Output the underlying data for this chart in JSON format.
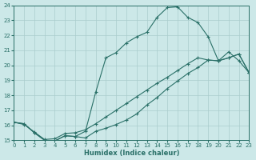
{
  "xlabel": "Humidex (Indice chaleur)",
  "background_color": "#cce8e8",
  "grid_color": "#aacccc",
  "line_color": "#2a7068",
  "xlim": [
    0,
    23
  ],
  "ylim": [
    15,
    24
  ],
  "xtick_labels": [
    "0",
    "1",
    "2",
    "3",
    "4",
    "5",
    "6",
    "7",
    "8",
    "9",
    "10",
    "11",
    "12",
    "13",
    "14",
    "15",
    "16",
    "17",
    "18",
    "19",
    "20",
    "21",
    "22",
    "23"
  ],
  "xticks": [
    0,
    1,
    2,
    3,
    4,
    5,
    6,
    7,
    8,
    9,
    10,
    11,
    12,
    13,
    14,
    15,
    16,
    17,
    18,
    19,
    20,
    21,
    22,
    23
  ],
  "yticks": [
    15,
    16,
    17,
    18,
    19,
    20,
    21,
    22,
    23,
    24
  ],
  "line1_x": [
    0,
    1,
    2,
    3,
    4,
    5,
    6,
    7,
    8,
    9,
    10,
    11,
    12,
    13,
    14,
    15,
    16,
    17,
    18,
    19,
    20,
    21,
    22,
    23
  ],
  "line1_y": [
    16.2,
    16.1,
    15.5,
    15.0,
    14.95,
    15.3,
    15.25,
    15.15,
    15.6,
    15.8,
    16.05,
    16.35,
    16.75,
    17.35,
    17.85,
    18.45,
    18.95,
    19.45,
    19.85,
    20.35,
    20.3,
    20.5,
    20.75,
    19.5
  ],
  "line2_x": [
    0,
    1,
    2,
    3,
    4,
    5,
    6,
    7,
    8,
    9,
    10,
    11,
    12,
    13,
    14,
    15,
    16,
    17,
    18,
    19,
    20,
    21,
    22,
    23
  ],
  "line2_y": [
    16.2,
    16.1,
    15.5,
    15.0,
    14.95,
    15.3,
    15.25,
    15.6,
    18.2,
    20.5,
    20.85,
    21.5,
    21.9,
    22.2,
    23.2,
    23.85,
    23.9,
    23.2,
    22.85,
    21.9,
    20.3,
    20.9,
    20.3,
    19.5
  ],
  "line3_x": [
    0,
    1,
    2,
    3,
    4,
    5,
    6,
    7,
    8,
    9,
    10,
    11,
    12,
    13,
    14,
    15,
    16,
    17,
    18,
    19,
    20,
    21,
    22,
    23
  ],
  "line3_y": [
    16.2,
    16.05,
    15.55,
    15.05,
    15.1,
    15.45,
    15.5,
    15.7,
    16.1,
    16.55,
    17.0,
    17.45,
    17.9,
    18.35,
    18.8,
    19.2,
    19.65,
    20.1,
    20.5,
    20.35,
    20.3,
    20.5,
    20.75,
    19.5
  ]
}
